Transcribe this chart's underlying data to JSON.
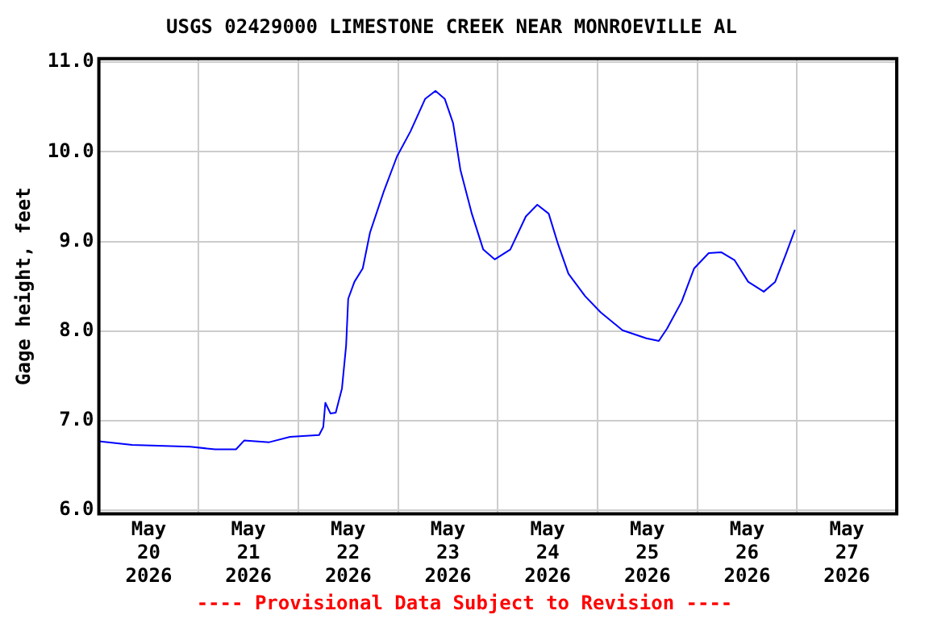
{
  "chart_data": {
    "type": "line",
    "title": "USGS 02429000 LIMESTONE CREEK NEAR MONROEVILLE AL",
    "ylabel": "Gage height, feet",
    "annotations": [
      "---- Provisional Data Subject to Revision ----"
    ],
    "series": [
      {
        "color": "#0000ff",
        "x": [
          "2026-05-20T00:00",
          "2026-05-20T08:00",
          "2026-05-20T22:00",
          "2026-05-21T04:00",
          "2026-05-21T09:00",
          "2026-05-21T11:00",
          "2026-05-21T17:00",
          "2026-05-21T22:00",
          "2026-05-22T05:00",
          "2026-05-22T06:00",
          "2026-05-22T06:30",
          "2026-05-22T07:45",
          "2026-05-22T09:00",
          "2026-05-22T10:30",
          "2026-05-22T11:30",
          "2026-05-22T12:00",
          "2026-05-22T13:30",
          "2026-05-22T15:30",
          "2026-05-22T17:15",
          "2026-05-22T20:30",
          "2026-05-22T23:45",
          "2026-05-23T03:00",
          "2026-05-23T06:30",
          "2026-05-23T09:00",
          "2026-05-23T11:15",
          "2026-05-23T13:15",
          "2026-05-23T15:00",
          "2026-05-23T17:45",
          "2026-05-23T20:30",
          "2026-05-23T23:15",
          "2026-05-24T03:00",
          "2026-05-24T06:45",
          "2026-05-24T09:30",
          "2026-05-24T12:15",
          "2026-05-24T14:30",
          "2026-05-24T17:00",
          "2026-05-24T21:00",
          "2026-05-25T00:45",
          "2026-05-25T06:00",
          "2026-05-25T11:45",
          "2026-05-25T14:45",
          "2026-05-25T16:45",
          "2026-05-25T20:15",
          "2026-05-25T23:15",
          "2026-05-26T02:45",
          "2026-05-26T05:45",
          "2026-05-26T09:00",
          "2026-05-26T12:15",
          "2026-05-26T16:00",
          "2026-05-26T18:45",
          "2026-05-26T21:15",
          "2026-05-26T23:30"
        ],
        "values": [
          6.77,
          6.73,
          6.71,
          6.68,
          6.68,
          6.78,
          6.76,
          6.82,
          6.84,
          6.93,
          7.2,
          7.08,
          7.09,
          7.36,
          7.84,
          8.36,
          8.55,
          8.7,
          9.1,
          9.55,
          9.95,
          10.23,
          10.59,
          10.68,
          10.59,
          10.32,
          9.8,
          9.31,
          8.91,
          8.8,
          8.91,
          9.28,
          9.41,
          9.31,
          8.97,
          8.64,
          8.39,
          8.21,
          8.01,
          7.92,
          7.89,
          8.03,
          8.33,
          8.7,
          8.87,
          8.88,
          8.79,
          8.55,
          8.44,
          8.55,
          8.85,
          9.13
        ]
      }
    ],
    "xlim": [
      "2026-05-20T00:00",
      "2026-05-28T00:00"
    ],
    "xticks": [
      {
        "value": "2026-05-20T12:00",
        "label": "May\n20\n2026"
      },
      {
        "value": "2026-05-21T00:00",
        "label": null
      },
      {
        "value": "2026-05-21T12:00",
        "label": "May\n21\n2026"
      },
      {
        "value": "2026-05-22T00:00",
        "label": null
      },
      {
        "value": "2026-05-22T12:00",
        "label": "May\n22\n2026"
      },
      {
        "value": "2026-05-23T00:00",
        "label": null
      },
      {
        "value": "2026-05-23T12:00",
        "label": "May\n23\n2026"
      },
      {
        "value": "2026-05-24T00:00",
        "label": null
      },
      {
        "value": "2026-05-24T12:00",
        "label": "May\n24\n2026"
      },
      {
        "value": "2026-05-25T00:00",
        "label": null
      },
      {
        "value": "2026-05-25T12:00",
        "label": "May\n25\n2026"
      },
      {
        "value": "2026-05-26T00:00",
        "label": null
      },
      {
        "value": "2026-05-26T12:00",
        "label": "May\n26\n2026"
      },
      {
        "value": "2026-05-27T00:00",
        "label": null
      },
      {
        "value": "2026-05-27T12:00",
        "label": "May\n27\n2026"
      }
    ],
    "ylim": [
      5.96,
      11.04
    ],
    "yticks": [
      {
        "value": 6,
        "label": "6.0"
      },
      {
        "value": 7,
        "label": "7.0"
      },
      {
        "value": 8,
        "label": "8.0"
      },
      {
        "value": 9,
        "label": "9.0"
      },
      {
        "value": 10,
        "label": "10.0"
      },
      {
        "value": 11,
        "label": "11.0"
      }
    ],
    "grid": true,
    "legend": false
  }
}
